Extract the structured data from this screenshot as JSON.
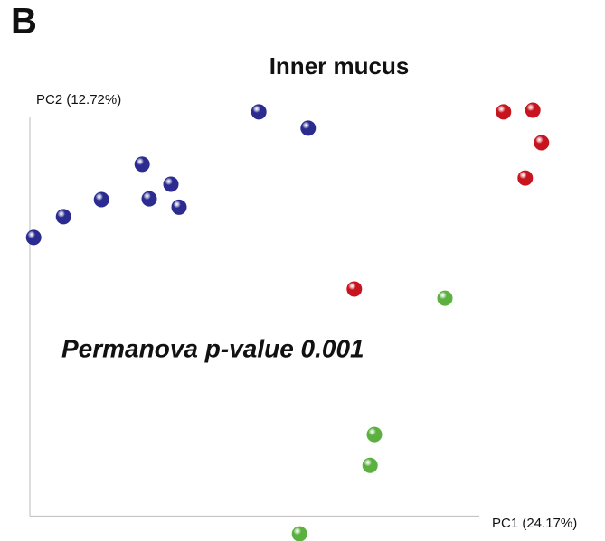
{
  "panel_label": "B",
  "chart_data": {
    "type": "scatter",
    "title": "Inner mucus",
    "xlabel": "PC1 (24.17%)",
    "ylabel": "PC2 (12.72%)",
    "annotation": "Permanova p-value 0.001",
    "xlim": [
      0,
      100
    ],
    "ylim": [
      -6,
      100
    ],
    "series": [
      {
        "color": "#2b2b90",
        "x": [
          42.2,
          51.3,
          20.7,
          26,
          22,
          27.5,
          13.2,
          6.2,
          0.7
        ],
        "values": [
          97.2,
          93.3,
          84.6,
          79.8,
          76.3,
          74.3,
          76.1,
          72,
          67
        ]
      },
      {
        "color": "#c8141e",
        "x": [
          87.3,
          92.7,
          94.3,
          91.3,
          59.8
        ],
        "values": [
          97.2,
          97.6,
          89.8,
          81.3,
          54.6
        ]
      },
      {
        "color": "#5cb040",
        "x": [
          76.5,
          63.5,
          62.7,
          49.7
        ],
        "values": [
          52.4,
          19.6,
          12.2,
          -4.3
        ]
      }
    ]
  }
}
